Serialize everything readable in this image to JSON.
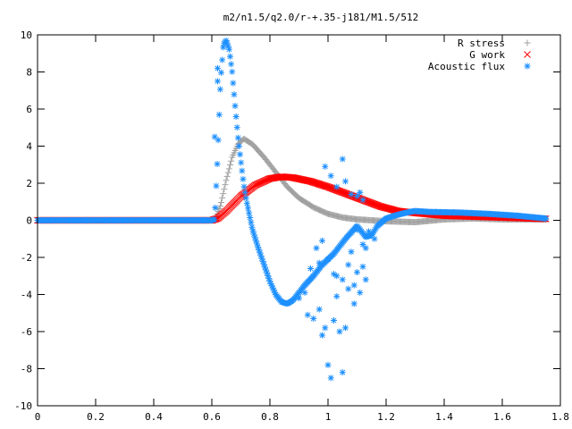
{
  "chart_data": {
    "type": "scatter",
    "title": "m2/n1.5/q2.0/r-+.35-j181/M1.5/512",
    "xlabel": "",
    "ylabel": "",
    "xlim": [
      0,
      1.8
    ],
    "ylim": [
      -10,
      10
    ],
    "x_ticks": [
      "0",
      "0.2",
      "0.4",
      "0.6",
      "0.8",
      "1",
      "1.2",
      "1.4",
      "1.6",
      "1.8"
    ],
    "y_ticks": [
      "10",
      "8",
      "6",
      "4",
      "2",
      "0",
      "-2",
      "-4",
      "-6",
      "-8",
      "-10"
    ],
    "grid": false,
    "legend_position": "top-right",
    "series": [
      {
        "name": "R stress",
        "marker": "+",
        "color": "#a0a0a0",
        "curve": [
          [
            0,
            0
          ],
          [
            0.6,
            0
          ],
          [
            0.61,
            0
          ],
          [
            0.63,
            0.8
          ],
          [
            0.65,
            2.2
          ],
          [
            0.67,
            3.4
          ],
          [
            0.69,
            4.1
          ],
          [
            0.71,
            4.4
          ],
          [
            0.74,
            4.1
          ],
          [
            0.78,
            3.4
          ],
          [
            0.82,
            2.6
          ],
          [
            0.86,
            1.8
          ],
          [
            0.9,
            1.2
          ],
          [
            0.95,
            0.7
          ],
          [
            1.0,
            0.35
          ],
          [
            1.05,
            0.15
          ],
          [
            1.1,
            0.05
          ],
          [
            1.2,
            -0.05
          ],
          [
            1.3,
            -0.1
          ],
          [
            1.4,
            0.05
          ],
          [
            1.5,
            0.1
          ],
          [
            1.6,
            0.05
          ],
          [
            1.75,
            0.05
          ]
        ]
      },
      {
        "name": "G work",
        "marker": "x",
        "color": "#ff0000",
        "curve": [
          [
            0,
            0
          ],
          [
            0.6,
            0
          ],
          [
            0.62,
            0.1
          ],
          [
            0.65,
            0.5
          ],
          [
            0.7,
            1.3
          ],
          [
            0.75,
            1.9
          ],
          [
            0.8,
            2.25
          ],
          [
            0.84,
            2.35
          ],
          [
            0.88,
            2.3
          ],
          [
            0.94,
            2.1
          ],
          [
            1.0,
            1.8
          ],
          [
            1.06,
            1.45
          ],
          [
            1.12,
            1.1
          ],
          [
            1.18,
            0.75
          ],
          [
            1.24,
            0.5
          ],
          [
            1.3,
            0.4
          ],
          [
            1.4,
            0.25
          ],
          [
            1.5,
            0.2
          ],
          [
            1.6,
            0.15
          ],
          [
            1.75,
            0.08
          ]
        ]
      },
      {
        "name": "Acoustic flux",
        "marker": "*",
        "color": "#1e90ff",
        "curve": [
          [
            0,
            0
          ],
          [
            0.6,
            0
          ],
          [
            0.61,
            0.05
          ],
          [
            0.62,
            3.5
          ],
          [
            0.63,
            7.5
          ],
          [
            0.64,
            9.5
          ],
          [
            0.65,
            9.7
          ],
          [
            0.66,
            9.2
          ],
          [
            0.67,
            8.0
          ],
          [
            0.68,
            6.2
          ],
          [
            0.69,
            4.5
          ],
          [
            0.7,
            3.2
          ],
          [
            0.71,
            1.9
          ],
          [
            0.72,
            1.0
          ],
          [
            0.74,
            -0.5
          ],
          [
            0.76,
            -1.5
          ],
          [
            0.78,
            -2.4
          ],
          [
            0.8,
            -3.3
          ],
          [
            0.82,
            -4.0
          ],
          [
            0.84,
            -4.4
          ],
          [
            0.86,
            -4.5
          ],
          [
            0.88,
            -4.3
          ],
          [
            0.9,
            -3.9
          ],
          [
            0.92,
            -3.5
          ],
          [
            0.95,
            -3.0
          ],
          [
            0.98,
            -2.4
          ],
          [
            1.02,
            -1.8
          ],
          [
            1.06,
            -1.0
          ],
          [
            1.1,
            -0.3
          ],
          [
            1.13,
            -0.9
          ],
          [
            1.15,
            -0.8
          ],
          [
            1.17,
            -0.3
          ],
          [
            1.2,
            0.1
          ],
          [
            1.24,
            0.3
          ],
          [
            1.28,
            0.45
          ],
          [
            1.3,
            0.5
          ],
          [
            1.35,
            0.45
          ],
          [
            1.45,
            0.42
          ],
          [
            1.55,
            0.35
          ],
          [
            1.65,
            0.25
          ],
          [
            1.75,
            0.1
          ]
        ],
        "scatter": [
          [
            0.61,
            4.5
          ],
          [
            0.62,
            8.2
          ],
          [
            0.62,
            7.5
          ],
          [
            0.9,
            -4.2
          ],
          [
            0.92,
            -3.9
          ],
          [
            0.93,
            -5.1
          ],
          [
            0.95,
            -5.3
          ],
          [
            0.97,
            -4.8
          ],
          [
            0.98,
            -6.2
          ],
          [
            0.99,
            -5.8
          ],
          [
            1.0,
            -7.8
          ],
          [
            1.01,
            -8.5
          ],
          [
            1.02,
            -5.4
          ],
          [
            1.03,
            -3.0
          ],
          [
            1.04,
            -6.0
          ],
          [
            1.05,
            -8.2
          ],
          [
            1.06,
            -5.8
          ],
          [
            0.94,
            -2.6
          ],
          [
            0.96,
            -1.5
          ],
          [
            0.97,
            -2.3
          ],
          [
            0.98,
            -1.1
          ],
          [
            1.0,
            -2.1
          ],
          [
            1.02,
            -2.9
          ],
          [
            1.05,
            -3.2
          ],
          [
            1.07,
            -2.4
          ],
          [
            1.08,
            -1.7
          ],
          [
            1.09,
            -3.5
          ],
          [
            1.1,
            -2.8
          ],
          [
            1.11,
            -3.9
          ],
          [
            1.12,
            -2.5
          ],
          [
            1.13,
            -1.5
          ],
          [
            0.99,
            2.9
          ],
          [
            1.01,
            2.4
          ],
          [
            1.03,
            1.8
          ],
          [
            1.05,
            3.3
          ],
          [
            1.06,
            2.1
          ],
          [
            1.08,
            1.4
          ],
          [
            1.1,
            1.3
          ],
          [
            1.11,
            1.5
          ],
          [
            1.12,
            1.1
          ],
          [
            1.1,
            -0.5
          ],
          [
            1.12,
            -1.3
          ],
          [
            1.14,
            -0.6
          ],
          [
            1.16,
            -1.0
          ],
          [
            1.03,
            -4.1
          ],
          [
            1.07,
            -3.7
          ],
          [
            1.09,
            -4.5
          ],
          [
            1.13,
            -3.2
          ]
        ]
      }
    ]
  }
}
